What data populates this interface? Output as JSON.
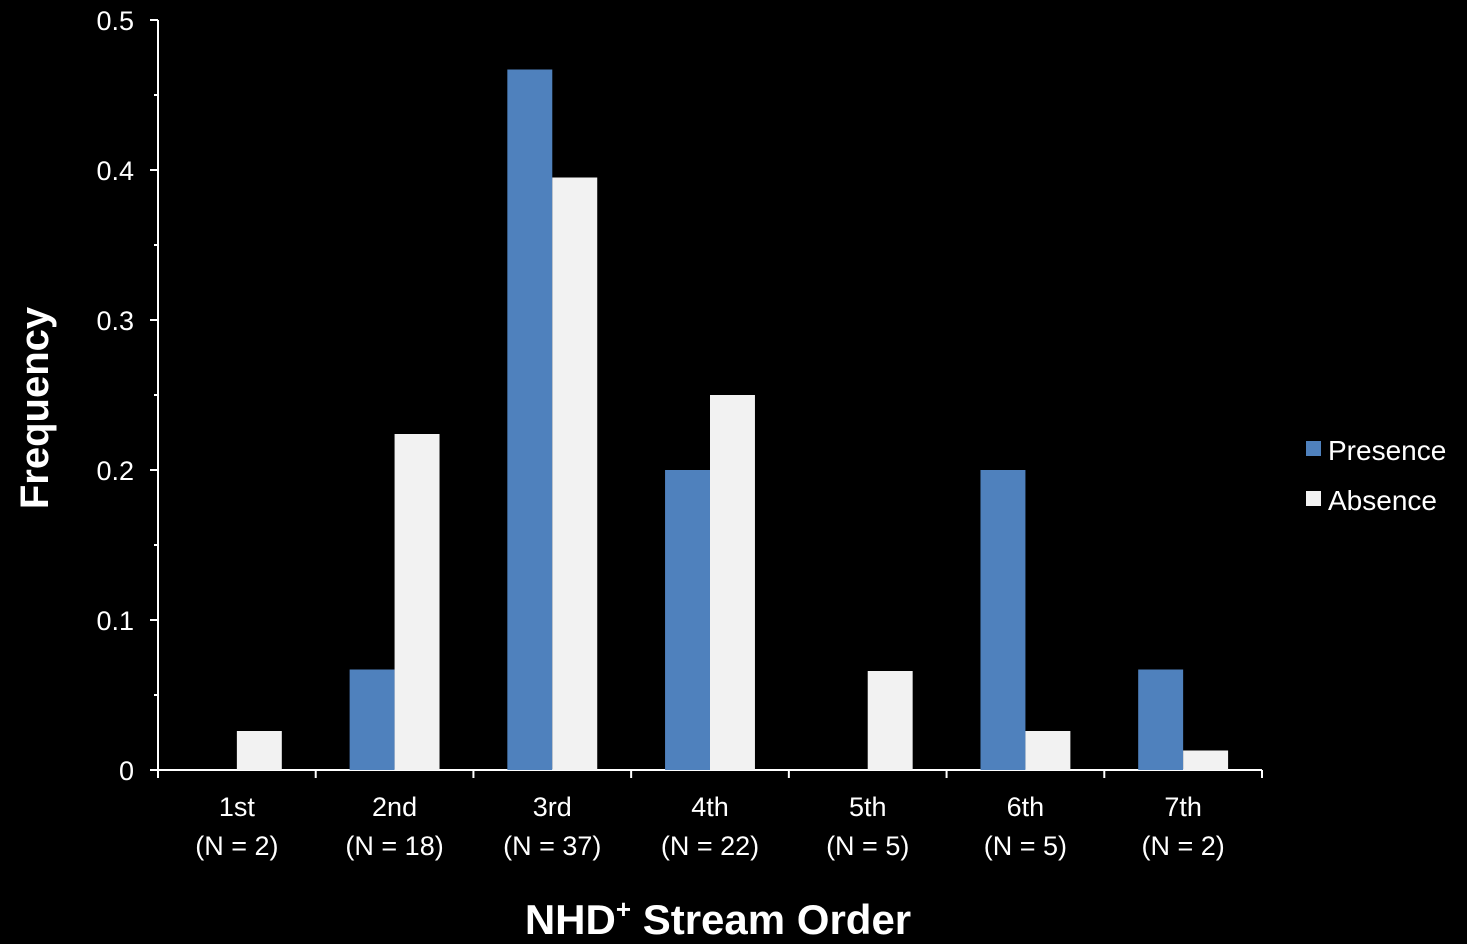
{
  "chart_data": {
    "type": "bar",
    "categories": [
      "1st",
      "2nd",
      "3rd",
      "4th",
      "5th",
      "6th",
      "7th"
    ],
    "category_counts": [
      "(N = 2)",
      "(N = 18)",
      "(N = 37)",
      "(N = 22)",
      "(N = 5)",
      "(N = 5)",
      "(N = 2)"
    ],
    "series": [
      {
        "name": "Presence",
        "color": "#4f81bd",
        "values": [
          0,
          0.067,
          0.467,
          0.2,
          0,
          0.2,
          0.067
        ]
      },
      {
        "name": "Absence",
        "color": "#f2f2f2",
        "values": [
          0.026,
          0.224,
          0.395,
          0.25,
          0.066,
          0.026,
          0.013
        ]
      }
    ],
    "xlabel": "NHD",
    "xlabel_superscript": "+",
    "xlabel_suffix": " Stream Order",
    "ylabel": "Frequency",
    "ylim": [
      0,
      0.5
    ],
    "yticks": [
      "0",
      "0.1",
      "0.2",
      "0.3",
      "0.4",
      "0.5"
    ],
    "grid": false,
    "legend_position": "right"
  }
}
